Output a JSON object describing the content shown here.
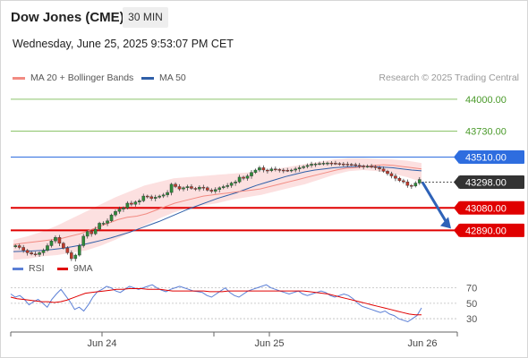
{
  "header": {
    "instrument": "Dow Jones (CME)",
    "timeframe": "30 MIN",
    "datetime": "Wednesday, June 25, 2025 9:53:07 PM CET"
  },
  "legend": {
    "items": [
      {
        "label": "MA 20 + Bollinger Bands",
        "color": "#f28b82"
      },
      {
        "label": "MA 50",
        "color": "#2f5fa8"
      }
    ],
    "credit": "Research © 2025 Trading Central"
  },
  "rsi_legend": {
    "items": [
      {
        "label": "RSI",
        "color": "#5b7fd6"
      },
      {
        "label": "9MA",
        "color": "#e00000"
      }
    ]
  },
  "chart_data": [
    {
      "type": "candlestick",
      "title": "Dow Jones (CME)",
      "ylim": [
        42650,
        44120
      ],
      "x_tick_labels": [
        "Jun 24",
        "Jun 25",
        "Jun 26"
      ],
      "levels": [
        {
          "value": 44000.0,
          "label": "44000.00",
          "color": "#8cc46a",
          "text_color": "#4a9a2a",
          "style": "plain"
        },
        {
          "value": 43730.0,
          "label": "43730.00",
          "color": "#8cc46a",
          "text_color": "#4a9a2a",
          "style": "plain"
        },
        {
          "value": 43510.0,
          "label": "43510.00",
          "color": "#2e6ddf",
          "text_color": "#ffffff",
          "style": "badge"
        },
        {
          "value": 43298.0,
          "label": "43298.00",
          "color": "#333333",
          "text_color": "#ffffff",
          "style": "badge-dotted"
        },
        {
          "value": 43080.0,
          "label": "43080.00",
          "color": "#e00000",
          "text_color": "#ffffff",
          "style": "badge"
        },
        {
          "value": 42890.0,
          "label": "42890.00",
          "color": "#e00000",
          "text_color": "#ffffff",
          "style": "badge"
        }
      ],
      "close": [
        42760,
        42745,
        42720,
        42700,
        42690,
        42685,
        42700,
        42720,
        42760,
        42800,
        42830,
        42780,
        42740,
        42700,
        42650,
        42680,
        42760,
        42840,
        42880,
        42860,
        42900,
        42950,
        42950,
        42970,
        43020,
        43050,
        43070,
        43080,
        43120,
        43110,
        43130,
        43140,
        43180,
        43175,
        43160,
        43170,
        43180,
        43190,
        43210,
        43280,
        43260,
        43240,
        43250,
        43260,
        43245,
        43240,
        43255,
        43250,
        43230,
        43220,
        43235,
        43250,
        43260,
        43270,
        43290,
        43300,
        43340,
        43330,
        43350,
        43380,
        43400,
        43420,
        43400,
        43395,
        43410,
        43405,
        43400,
        43398,
        43396,
        43400,
        43410,
        43420,
        43430,
        43440,
        43450,
        43452,
        43455,
        43458,
        43460,
        43458,
        43455,
        43452,
        43450,
        43448,
        43446,
        43440,
        43435,
        43430,
        43432,
        43430,
        43420,
        43410,
        43390,
        43370,
        43350,
        43330,
        43310,
        43300,
        43270,
        43265,
        43290,
        43320
      ],
      "ma20": [
        42770,
        42780,
        42790,
        42800,
        42810,
        42820,
        42840,
        42860,
        42890,
        42920,
        42950,
        42980,
        43000,
        43010,
        43030,
        43060,
        43090,
        43120,
        43140,
        43160,
        43180,
        43190,
        43200,
        43210,
        43220,
        43230,
        43240,
        43260,
        43280,
        43300,
        43320,
        43340,
        43360,
        43380,
        43400,
        43415,
        43420,
        43430,
        43440,
        43445,
        43440,
        43430,
        43420,
        43410
      ],
      "ma50": [
        42710,
        42712,
        42715,
        42720,
        42727,
        42737,
        42750,
        42766,
        42784,
        42804,
        42825,
        42850,
        42875,
        42905,
        42935,
        42965,
        43000,
        43035,
        43070,
        43100,
        43130,
        43160,
        43185,
        43210,
        43240,
        43270,
        43295,
        43320,
        43345,
        43365,
        43385,
        43400,
        43410,
        43420,
        43425,
        43430,
        43432,
        43430,
        43425,
        43420,
        43410,
        43400,
        43393
      ],
      "bb_upper": [
        42810,
        42840,
        42880,
        42930,
        42990,
        43050,
        43110,
        43170,
        43220,
        43270,
        43300,
        43330,
        43340,
        43350,
        43360,
        43370,
        43380,
        43390,
        43410,
        43430,
        43450,
        43470,
        43490,
        43500,
        43500,
        43495,
        43490,
        43480,
        43460
      ],
      "bb_lower": [
        42640,
        42650,
        42670,
        42680,
        42700,
        42720,
        42760,
        42810,
        42870,
        42930,
        42990,
        43040,
        43080,
        43100,
        43120,
        43150,
        43170,
        43190,
        43220,
        43250,
        43280,
        43320,
        43360,
        43390,
        43400,
        43390,
        43370,
        43340,
        43300
      ]
    },
    {
      "type": "line",
      "title": "RSI",
      "ylim": [
        15,
        80
      ],
      "y_ticks": [
        70,
        50,
        30
      ],
      "series": [
        {
          "name": "RSI",
          "color": "#5b7fd6",
          "values": [
            62,
            58,
            60,
            55,
            48,
            52,
            55,
            50,
            45,
            55,
            62,
            68,
            60,
            52,
            42,
            45,
            40,
            48,
            58,
            65,
            68,
            72,
            70,
            66,
            64,
            68,
            72,
            70,
            68,
            70,
            72,
            74,
            70,
            67,
            65,
            68,
            70,
            72,
            70,
            68,
            66,
            65,
            64,
            60,
            58,
            62,
            66,
            70,
            64,
            60,
            58,
            62,
            66,
            68,
            70,
            72,
            74,
            70,
            68,
            66,
            64,
            62,
            64,
            66,
            62,
            60,
            62,
            64,
            66,
            64,
            60,
            58,
            60,
            62,
            60,
            56,
            50,
            46,
            44,
            42,
            40,
            38,
            40,
            36,
            34,
            30,
            28,
            26,
            30,
            34,
            44
          ]
        },
        {
          "name": "9MA",
          "color": "#e00000",
          "values": [
            58,
            56,
            55,
            54,
            53,
            52,
            52,
            51,
            52,
            54,
            57,
            60,
            63,
            64,
            65,
            66,
            67,
            68,
            68,
            69,
            69,
            69,
            68,
            68,
            68,
            67,
            66,
            66,
            66,
            66,
            66,
            66,
            65,
            65,
            65,
            66,
            66,
            66,
            66,
            66,
            66,
            66,
            66,
            66,
            66,
            66,
            66,
            66,
            65,
            64,
            63,
            62,
            60,
            58,
            56,
            54,
            52,
            50,
            48,
            46,
            44,
            42,
            40,
            38,
            36,
            35,
            35
          ]
        }
      ]
    }
  ]
}
